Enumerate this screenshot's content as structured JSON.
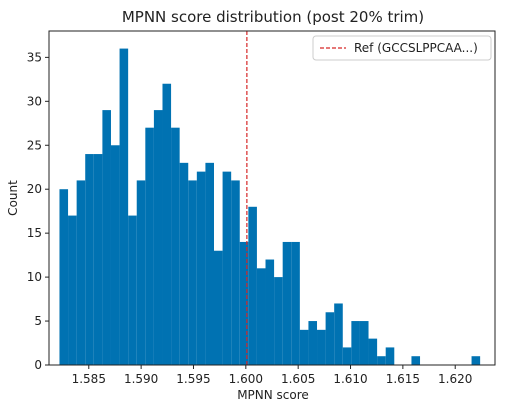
{
  "chart_data": {
    "type": "bar",
    "title": "MPNN score distribution (post 20% trim)",
    "xlabel": "MPNN score",
    "ylabel": "Count",
    "xlim": [
      1.5812,
      1.6238
    ],
    "ylim": [
      0,
      38
    ],
    "bin_start": 1.5822,
    "bin_width": 0.00082,
    "values": [
      20,
      17,
      21,
      24,
      24,
      29,
      25,
      36,
      17,
      21,
      27,
      29,
      32,
      27,
      23,
      21,
      22,
      23,
      13,
      22,
      21,
      14,
      18,
      11,
      12,
      10,
      14,
      14,
      4,
      5,
      4,
      6,
      7,
      2,
      5,
      5,
      3,
      1,
      2,
      0,
      0,
      1,
      0,
      0,
      0,
      0,
      0,
      0,
      1
    ],
    "x_ticks": [
      "1.585",
      "1.590",
      "1.595",
      "1.600",
      "1.605",
      "1.610",
      "1.615",
      "1.620"
    ],
    "x_tick_values": [
      1.585,
      1.59,
      1.595,
      1.6,
      1.605,
      1.61,
      1.615,
      1.62
    ],
    "y_ticks": [
      "0",
      "5",
      "10",
      "15",
      "20",
      "25",
      "30",
      "35"
    ],
    "y_tick_values": [
      0,
      5,
      10,
      15,
      20,
      25,
      30,
      35
    ],
    "reference_line": {
      "x": 1.6001,
      "label": "Ref (GCCSLPPCAA...)",
      "color": "#d62728",
      "style": "dashed"
    },
    "bar_color": "#0072b2",
    "grid": false,
    "legend_position": "top-right"
  }
}
